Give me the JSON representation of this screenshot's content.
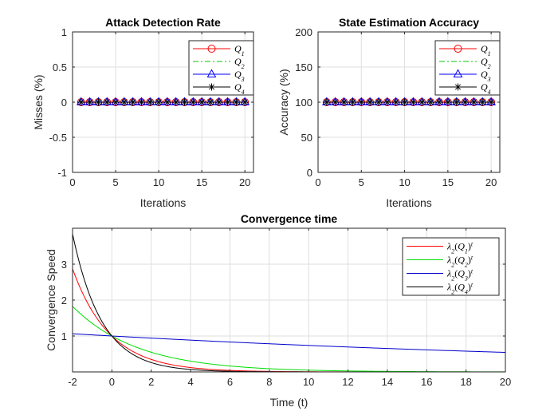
{
  "chart_data": [
    {
      "id": "detection",
      "type": "line",
      "title": "Attack Detection Rate",
      "xlabel": "Iterations",
      "ylabel": "Misses (%)",
      "xlim": [
        0,
        21
      ],
      "ylim": [
        -1,
        1
      ],
      "xticks": [
        0,
        5,
        10,
        15,
        20
      ],
      "yticks": [
        -1,
        -0.5,
        0,
        0.5,
        1
      ],
      "ytick_labels": [
        "-1",
        "-0.5",
        "0",
        "0.5",
        "1"
      ],
      "grid": true,
      "legend_position": "top-right",
      "x": [
        1,
        2,
        3,
        4,
        5,
        6,
        7,
        8,
        9,
        10,
        11,
        12,
        13,
        14,
        15,
        16,
        17,
        18,
        19,
        20
      ],
      "series": [
        {
          "name": "Q",
          "sub": "1",
          "color": "#ff0000",
          "dash": "",
          "marker": "circle",
          "values": [
            0,
            0,
            0,
            0,
            0,
            0,
            0,
            0,
            0,
            0,
            0,
            0,
            0,
            0,
            0,
            0,
            0,
            0,
            0,
            0
          ]
        },
        {
          "name": "Q",
          "sub": "2",
          "color": "#00cc00",
          "dash": "7,3,2,3",
          "marker": "none",
          "values": [
            0,
            0,
            0,
            0,
            0,
            0,
            0,
            0,
            0,
            0,
            0,
            0,
            0,
            0,
            0,
            0,
            0,
            0,
            0,
            0
          ]
        },
        {
          "name": "Q",
          "sub": "3",
          "color": "#0000ff",
          "dash": "",
          "marker": "triangle",
          "values": [
            0,
            0,
            0,
            0,
            0,
            0,
            0,
            0,
            0,
            0,
            0,
            0,
            0,
            0,
            0,
            0,
            0,
            0,
            0,
            0
          ]
        },
        {
          "name": "Q",
          "sub": "4",
          "color": "#000000",
          "dash": "",
          "marker": "star",
          "values": [
            0,
            0,
            0,
            0,
            0,
            0,
            0,
            0,
            0,
            0,
            0,
            0,
            0,
            0,
            0,
            0,
            0,
            0,
            0,
            0
          ]
        }
      ]
    },
    {
      "id": "accuracy",
      "type": "line",
      "title": "State Estimation Accuracy",
      "xlabel": "Iterations",
      "ylabel": "Accuracy (%)",
      "xlim": [
        0,
        21
      ],
      "ylim": [
        0,
        200
      ],
      "xticks": [
        0,
        5,
        10,
        15,
        20
      ],
      "yticks": [
        0,
        50,
        100,
        150,
        200
      ],
      "ytick_labels": [
        "0",
        "50",
        "100",
        "150",
        "200"
      ],
      "grid": true,
      "legend_position": "top-right",
      "x": [
        1,
        2,
        3,
        4,
        5,
        6,
        7,
        8,
        9,
        10,
        11,
        12,
        13,
        14,
        15,
        16,
        17,
        18,
        19,
        20
      ],
      "series": [
        {
          "name": "Q",
          "sub": "1",
          "color": "#ff0000",
          "dash": "",
          "marker": "circle",
          "values": [
            100,
            100,
            100,
            100,
            100,
            100,
            100,
            100,
            100,
            100,
            100,
            100,
            100,
            100,
            100,
            100,
            100,
            100,
            100,
            100
          ]
        },
        {
          "name": "Q",
          "sub": "2",
          "color": "#00cc00",
          "dash": "7,3,2,3",
          "marker": "none",
          "values": [
            100,
            100,
            100,
            100,
            100,
            100,
            100,
            100,
            100,
            100,
            100,
            100,
            100,
            100,
            100,
            100,
            100,
            100,
            100,
            100
          ]
        },
        {
          "name": "Q",
          "sub": "3",
          "color": "#0000ff",
          "dash": "",
          "marker": "triangle",
          "values": [
            100,
            100,
            100,
            100,
            100,
            100,
            100,
            100,
            100,
            100,
            100,
            100,
            100,
            100,
            100,
            100,
            100,
            100,
            100,
            100
          ]
        },
        {
          "name": "Q",
          "sub": "4",
          "color": "#000000",
          "dash": "",
          "marker": "star",
          "values": [
            100,
            100,
            100,
            100,
            100,
            100,
            100,
            100,
            100,
            100,
            100,
            100,
            100,
            100,
            100,
            100,
            100,
            100,
            100,
            100
          ]
        }
      ]
    },
    {
      "id": "convergence",
      "type": "line",
      "title": "Convergence time",
      "xlabel": "Time (t)",
      "ylabel": "Convergence Speed",
      "xlim": [
        -2,
        20
      ],
      "ylim": [
        0,
        4
      ],
      "xticks": [
        -2,
        0,
        2,
        4,
        6,
        8,
        10,
        12,
        14,
        16,
        18,
        20
      ],
      "yticks": [
        1,
        2,
        3
      ],
      "ytick_labels": [
        "1",
        "2",
        "3"
      ],
      "grid": true,
      "legend_position": "top-right",
      "series": [
        {
          "name": "λ",
          "base": "2",
          "arg": "Q",
          "sub": "1",
          "exp": "t",
          "color": "#ff0000",
          "lambda": 0.59
        },
        {
          "name": "λ",
          "base": "2",
          "arg": "Q",
          "sub": "2",
          "exp": "t",
          "color": "#00dd00",
          "lambda": 0.74
        },
        {
          "name": "λ",
          "base": "2",
          "arg": "Q",
          "sub": "3",
          "exp": "t",
          "color": "#0000cc",
          "lambda": 0.97
        },
        {
          "name": "λ",
          "base": "2",
          "arg": "Q",
          "sub": "4",
          "exp": "t",
          "color": "#000000",
          "lambda": 0.51
        }
      ]
    }
  ]
}
